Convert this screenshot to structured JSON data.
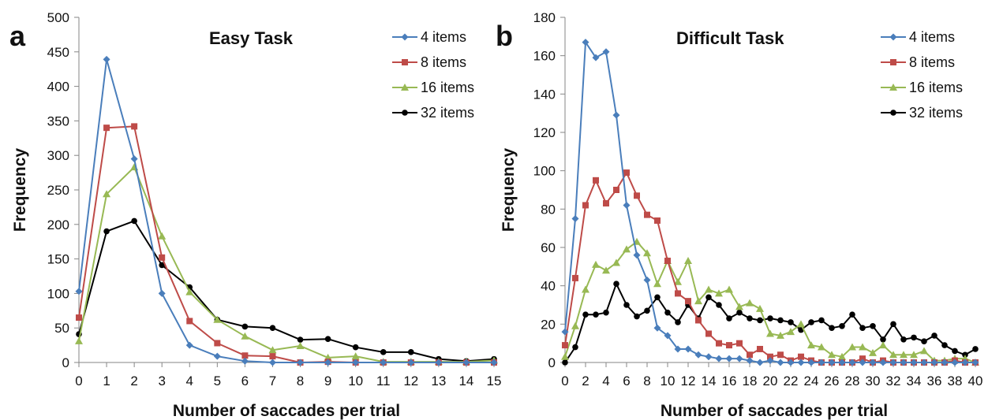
{
  "chart_data": [
    {
      "type": "line",
      "panel_label": "a",
      "title": "Easy Task",
      "xlabel": "Number of saccades per trial",
      "ylabel": "Frequency",
      "xlim": [
        0,
        15
      ],
      "ylim": [
        0,
        500
      ],
      "xticks": [
        0,
        1,
        2,
        3,
        4,
        5,
        6,
        7,
        8,
        9,
        10,
        11,
        12,
        13,
        14,
        15
      ],
      "yticks": [
        0,
        50,
        100,
        150,
        200,
        250,
        300,
        350,
        400,
        450,
        500
      ],
      "legend_position": "top-right",
      "x": [
        0,
        1,
        2,
        3,
        4,
        5,
        6,
        7,
        8,
        9,
        10,
        11,
        12,
        13,
        14,
        15
      ],
      "series": [
        {
          "name": "4 items",
          "color": "#4a7ebb",
          "marker": "diamond",
          "values": [
            103,
            439,
            295,
            100,
            25,
            9,
            2,
            0,
            0,
            0,
            0,
            0,
            0,
            0,
            0,
            0
          ]
        },
        {
          "name": "8 items",
          "color": "#be4b48",
          "marker": "square",
          "values": [
            65,
            340,
            342,
            152,
            60,
            28,
            10,
            9,
            0,
            1,
            0,
            0,
            0,
            0,
            0,
            0
          ]
        },
        {
          "name": "16 items",
          "color": "#98b954",
          "marker": "triangle",
          "values": [
            31,
            244,
            283,
            183,
            102,
            62,
            38,
            18,
            24,
            7,
            9,
            1,
            1,
            1,
            1,
            3
          ]
        },
        {
          "name": "32 items",
          "color": "#000000",
          "marker": "circle",
          "values": [
            41,
            190,
            205,
            141,
            109,
            62,
            52,
            50,
            33,
            34,
            22,
            15,
            15,
            5,
            2,
            5
          ]
        }
      ]
    },
    {
      "type": "line",
      "panel_label": "b",
      "title": "Difficult Task",
      "xlabel": "Number of saccades per trial",
      "ylabel": "Frequency",
      "xlim": [
        0,
        40
      ],
      "ylim": [
        0,
        180
      ],
      "xticks": [
        0,
        2,
        4,
        6,
        8,
        10,
        12,
        14,
        16,
        18,
        20,
        22,
        24,
        26,
        28,
        30,
        32,
        34,
        36,
        38,
        40
      ],
      "yticks": [
        0,
        20,
        40,
        60,
        80,
        100,
        120,
        140,
        160,
        180
      ],
      "legend_position": "top-right",
      "x": [
        0,
        1,
        2,
        3,
        4,
        5,
        6,
        7,
        8,
        9,
        10,
        11,
        12,
        13,
        14,
        15,
        16,
        17,
        18,
        19,
        20,
        21,
        22,
        23,
        24,
        25,
        26,
        27,
        28,
        29,
        30,
        31,
        32,
        33,
        34,
        35,
        36,
        37,
        38,
        39,
        40
      ],
      "series": [
        {
          "name": "4 items",
          "color": "#4a7ebb",
          "marker": "diamond",
          "values": [
            16,
            75,
            167,
            159,
            162,
            129,
            82,
            56,
            43,
            18,
            14,
            7,
            7,
            4,
            3,
            2,
            2,
            2,
            1,
            0,
            1,
            0,
            0,
            0,
            0,
            0,
            0,
            0,
            0,
            0,
            0,
            0,
            0,
            0,
            0,
            0,
            0,
            0,
            0,
            0,
            0
          ]
        },
        {
          "name": "8 items",
          "color": "#be4b48",
          "marker": "square",
          "values": [
            9,
            44,
            82,
            95,
            83,
            90,
            99,
            87,
            77,
            74,
            53,
            36,
            32,
            22,
            15,
            10,
            9,
            10,
            4,
            7,
            3,
            4,
            1,
            3,
            1,
            0,
            0,
            0,
            0,
            2,
            0,
            1,
            0,
            0,
            0,
            0,
            0,
            0,
            1,
            0,
            0
          ]
        },
        {
          "name": "16 items",
          "color": "#98b954",
          "marker": "triangle",
          "values": [
            3,
            19,
            38,
            51,
            48,
            52,
            59,
            63,
            57,
            41,
            53,
            42,
            53,
            32,
            38,
            36,
            38,
            29,
            31,
            28,
            15,
            14,
            16,
            20,
            9,
            8,
            4,
            3,
            8,
            8,
            5,
            9,
            4,
            4,
            4,
            6,
            1,
            1,
            2,
            2,
            0
          ]
        },
        {
          "name": "32 items",
          "color": "#000000",
          "marker": "circle",
          "values": [
            0,
            8,
            25,
            25,
            26,
            41,
            30,
            24,
            27,
            34,
            26,
            21,
            30,
            23,
            34,
            30,
            23,
            26,
            23,
            22,
            23,
            22,
            21,
            17,
            21,
            22,
            18,
            19,
            25,
            18,
            19,
            12,
            20,
            12,
            13,
            11,
            14,
            9,
            6,
            4,
            7
          ]
        }
      ]
    }
  ]
}
